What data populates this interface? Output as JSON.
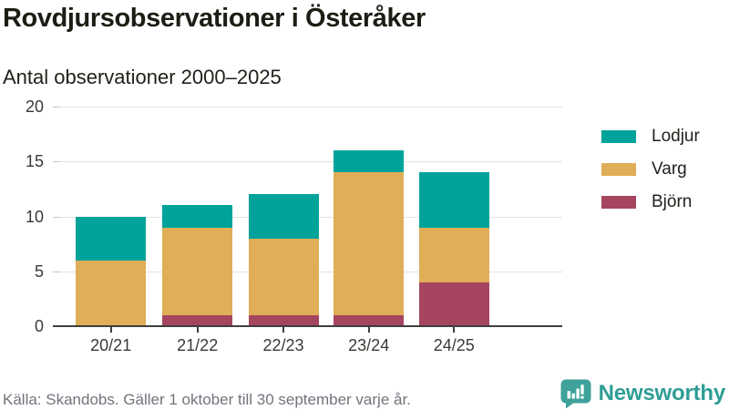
{
  "header": {
    "title": "Rovdjursobservationer i Österåker",
    "subtitle": "Antal observationer 2000–2025"
  },
  "chart_data": {
    "type": "bar",
    "stacked": true,
    "title": "Rovdjursobservationer i Österåker",
    "subtitle": "Antal observationer 2000–2025",
    "categories": [
      "20/21",
      "21/22",
      "22/23",
      "23/24",
      "24/25"
    ],
    "series": [
      {
        "name": "Björn",
        "key": "bjorn",
        "color": "#A6455F",
        "values": [
          0,
          1,
          1,
          1,
          4
        ]
      },
      {
        "name": "Varg",
        "key": "varg",
        "color": "#E0AE58",
        "values": [
          6,
          8,
          7,
          13,
          5
        ]
      },
      {
        "name": "Lodjur",
        "key": "lodjur",
        "color": "#00A39A",
        "values": [
          4,
          2,
          4,
          2,
          5
        ]
      }
    ],
    "stack_order_note": "series listed bottom-to-top",
    "totals": [
      10,
      11,
      12,
      16,
      14
    ],
    "xlabel": "",
    "ylabel": "",
    "ylim": [
      0,
      20
    ],
    "yticks": [
      0,
      5,
      10,
      15,
      20
    ],
    "grid": true,
    "legend_position": "right"
  },
  "legend": {
    "items": [
      {
        "label": "Lodjur",
        "color": "#00A39A"
      },
      {
        "label": "Varg",
        "color": "#E0AE58"
      },
      {
        "label": "Björn",
        "color": "#A6455F"
      }
    ]
  },
  "footer": {
    "source": "Källa: Skandobs. Gäller 1 oktober till 30 september varje år.",
    "brand": "Newsworthy"
  },
  "colors": {
    "lodjur": "#00A39A",
    "varg": "#E0AE58",
    "bjorn": "#A6455F",
    "axis": "#3f3f3f",
    "grid": "#e2e2e2",
    "text": "#1d1d15",
    "muted_text": "#73737e",
    "brand_teal": "#2e9d95",
    "logo_teal": "#3ea29b"
  },
  "icons": {
    "logo": "bar-chart-speech-bubble-icon"
  }
}
